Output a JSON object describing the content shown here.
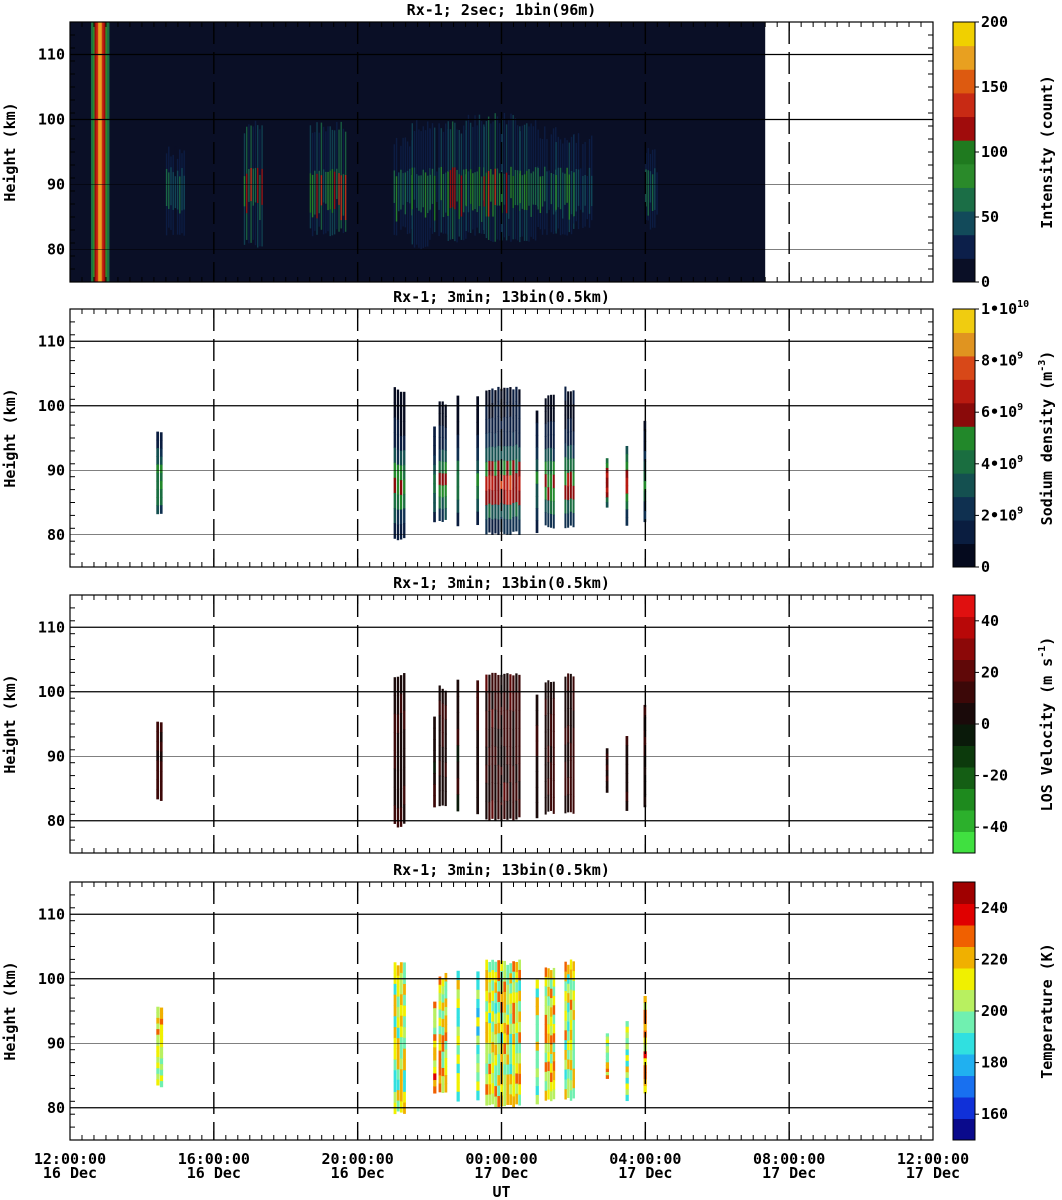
{
  "x_axis": {
    "label": "UT",
    "ticks": [
      {
        "time": "12:00:00",
        "date": "16 Dec"
      },
      {
        "time": "16:00:00",
        "date": "16 Dec"
      },
      {
        "time": "20:00:00",
        "date": "16 Dec"
      },
      {
        "time": "00:00:00",
        "date": "17 Dec"
      },
      {
        "time": "04:00:00",
        "date": "17 Dec"
      },
      {
        "time": "08:00:00",
        "date": "17 Dec"
      },
      {
        "time": "12:00:00",
        "date": "17 Dec"
      }
    ]
  },
  "chart_data": [
    {
      "type": "heatmap",
      "title": "Rx-1;  2sec; 1bin(96m)",
      "ylabel": "Height (km)",
      "ylim": [
        75,
        115
      ],
      "yticks": [
        "80",
        "90",
        "100",
        "110"
      ],
      "xlim": [
        "16 Dec 12:00:00",
        "17 Dec 12:00:00"
      ],
      "colorbar": {
        "label": "Intensity (count)",
        "range": [
          0,
          200
        ],
        "ticks": [
          "0",
          "50",
          "100",
          "150",
          "200"
        ],
        "colors": [
          "#0a0f26",
          "#0c1f4a",
          "#124a5a",
          "#1b6e46",
          "#2a8a2a",
          "#1f7a1f",
          "#a00c0c",
          "#c82a14",
          "#dd5a10",
          "#e8a020",
          "#f0d000"
        ]
      },
      "data_coverage": "16 Dec 12:00 to 17 Dec 07:20",
      "layers": [
        {
          "x_start": "16 Dec 12:00",
          "x_end": "17 Dec 07:20",
          "y_range": [
            75,
            115
          ],
          "value": 0
        },
        {
          "x_start": "16 Dec 12:35",
          "x_end": "16 Dec 13:05",
          "y_range": [
            75,
            115
          ],
          "value": 180
        }
      ],
      "bursts": [
        {
          "x_start": "16 Dec 14:40",
          "x_end": "16 Dec 15:10",
          "y_range": [
            82,
            96
          ],
          "value": 70
        },
        {
          "x_start": "16 Dec 16:50",
          "x_end": "16 Dec 17:20",
          "y_range": [
            80,
            100
          ],
          "value": 110
        },
        {
          "x_start": "16 Dec 18:40",
          "x_end": "16 Dec 19:40",
          "y_range": [
            82,
            100
          ],
          "value": 120
        },
        {
          "x_start": "16 Dec 21:00",
          "x_end": "16 Dec 21:30",
          "y_range": [
            82,
            98
          ],
          "value": 80
        },
        {
          "x_start": "16 Dec 21:30",
          "x_end": "16 Dec 22:00",
          "y_range": [
            80,
            100
          ],
          "value": 110
        },
        {
          "x_start": "16 Dec 22:00",
          "x_end": "16 Dec 22:30",
          "y_range": [
            82,
            100
          ],
          "value": 80
        },
        {
          "x_start": "16 Dec 22:30",
          "x_end": "16 Dec 23:00",
          "y_range": [
            81,
            100
          ],
          "value": 110
        },
        {
          "x_start": "16 Dec 23:00",
          "x_end": "16 Dec 23:30",
          "y_range": [
            82,
            101
          ],
          "value": 90
        },
        {
          "x_start": "16 Dec 23:30",
          "x_end": "17 Dec 00:00",
          "y_range": [
            81,
            101
          ],
          "value": 120
        },
        {
          "x_start": "17 Dec 00:00",
          "x_end": "17 Dec 00:30",
          "y_range": [
            81,
            101
          ],
          "value": 110
        },
        {
          "x_start": "17 Dec 00:30",
          "x_end": "17 Dec 01:00",
          "y_range": [
            81,
            100
          ],
          "value": 90
        },
        {
          "x_start": "17 Dec 01:00",
          "x_end": "17 Dec 01:30",
          "y_range": [
            82,
            99
          ],
          "value": 70
        },
        {
          "x_start": "17 Dec 01:30",
          "x_end": "17 Dec 02:00",
          "y_range": [
            82,
            98
          ],
          "value": 80
        },
        {
          "x_start": "17 Dec 02:00",
          "x_end": "17 Dec 02:30",
          "y_range": [
            83,
            98
          ],
          "value": 60
        },
        {
          "x_start": "17 Dec 04:00",
          "x_end": "17 Dec 04:20",
          "y_range": [
            83,
            96
          ],
          "value": 60
        }
      ]
    },
    {
      "type": "heatmap",
      "title": "Rx-1; 3min; 13bin(0.5km)",
      "ylabel": "Height (km)",
      "ylim": [
        75,
        115
      ],
      "yticks": [
        "80",
        "90",
        "100",
        "110"
      ],
      "xlim": [
        "16 Dec 12:00:00",
        "17 Dec 12:00:00"
      ],
      "colorbar": {
        "label": "Sodium density",
        "unit": "(m",
        "unit_exp": "-3",
        "unit_close": ")",
        "range": [
          0,
          10000000000.0
        ],
        "ticks": [
          {
            "mantissa": "0",
            "exp": ""
          },
          {
            "mantissa": "2•10",
            "exp": "9"
          },
          {
            "mantissa": "4•10",
            "exp": "9"
          },
          {
            "mantissa": "6•10",
            "exp": "9"
          },
          {
            "mantissa": "8•10",
            "exp": "9"
          },
          {
            "mantissa": "1•10",
            "exp": "10"
          }
        ],
        "colors": [
          "#050a1e",
          "#0a1d40",
          "#0f3050",
          "#145050",
          "#1a6e40",
          "#22882a",
          "#8a0a0a",
          "#b81a10",
          "#d84818",
          "#e09420",
          "#f0cc10"
        ]
      },
      "profiles": [
        {
          "x_start": "16 Dec 14:24",
          "x_end": "16 Dec 14:36",
          "y_range": [
            83,
            96
          ],
          "value": 4500000000.0
        },
        {
          "x_start": "16 Dec 21:00",
          "x_end": "16 Dec 21:21",
          "y_range": [
            79,
            103
          ],
          "value": 5000000000.0
        },
        {
          "x_start": "16 Dec 22:06",
          "x_end": "16 Dec 22:12",
          "y_range": [
            82,
            97
          ],
          "value": 4000000000.0
        },
        {
          "x_start": "16 Dec 22:15",
          "x_end": "16 Dec 22:30",
          "y_range": [
            82,
            101
          ],
          "value": 5000000000.0
        },
        {
          "x_start": "16 Dec 22:45",
          "x_end": "16 Dec 22:51",
          "y_range": [
            81,
            102
          ],
          "value": 4000000000.0
        },
        {
          "x_start": "16 Dec 23:18",
          "x_end": "16 Dec 23:24",
          "y_range": [
            81,
            102
          ],
          "value": 4000000000.0
        },
        {
          "x_start": "16 Dec 23:33",
          "x_end": "17 Dec 00:33",
          "y_range": [
            80,
            103
          ],
          "value": 6000000000.0
        },
        {
          "x_start": "17 Dec 00:57",
          "x_end": "17 Dec 01:03",
          "y_range": [
            80,
            100
          ],
          "value": 4000000000.0
        },
        {
          "x_start": "17 Dec 01:12",
          "x_end": "17 Dec 01:30",
          "y_range": [
            81,
            102
          ],
          "value": 5000000000.0
        },
        {
          "x_start": "17 Dec 01:45",
          "x_end": "17 Dec 02:03",
          "y_range": [
            81,
            103
          ],
          "value": 5500000000.0
        },
        {
          "x_start": "17 Dec 02:54",
          "x_end": "17 Dec 03:00",
          "y_range": [
            84,
            92
          ],
          "value": 6000000000.0
        },
        {
          "x_start": "17 Dec 03:27",
          "x_end": "17 Dec 03:33",
          "y_range": [
            81,
            94
          ],
          "value": 6000000000.0
        },
        {
          "x_start": "17 Dec 03:57",
          "x_end": "17 Dec 04:03",
          "y_range": [
            82,
            98
          ],
          "value": 4000000000.0
        }
      ]
    },
    {
      "type": "heatmap",
      "title": "Rx-1; 3min; 13bin(0.5km)",
      "ylabel": "Height (km)",
      "ylim": [
        75,
        115
      ],
      "yticks": [
        "80",
        "90",
        "100",
        "110"
      ],
      "xlim": [
        "16 Dec 12:00:00",
        "17 Dec 12:00:00"
      ],
      "colorbar": {
        "label": "LOS Velocity",
        "unit": "(m s",
        "unit_exp": "-1",
        "unit_close": ")",
        "range": [
          -50,
          50
        ],
        "ticks": [
          "-40",
          "-20",
          "0",
          "20",
          "40"
        ],
        "colors": [
          "#40e040",
          "#2cb02c",
          "#1e8a1e",
          "#145e14",
          "#0c3a0c",
          "#0a1a0a",
          "#1a0a0a",
          "#3c0808",
          "#600808",
          "#8c0808",
          "#b80808",
          "#e01010"
        ]
      },
      "profiles": [
        {
          "x_start": "16 Dec 14:24",
          "x_end": "16 Dec 14:36",
          "y_range": [
            83,
            96
          ],
          "value": 8
        },
        {
          "x_start": "16 Dec 21:00",
          "x_end": "16 Dec 21:21",
          "y_range": [
            79,
            103
          ],
          "value": 6
        },
        {
          "x_start": "16 Dec 22:06",
          "x_end": "16 Dec 22:12",
          "y_range": [
            82,
            97
          ],
          "value": 5
        },
        {
          "x_start": "16 Dec 22:15",
          "x_end": "16 Dec 22:30",
          "y_range": [
            82,
            101
          ],
          "value": 7
        },
        {
          "x_start": "16 Dec 22:45",
          "x_end": "16 Dec 22:51",
          "y_range": [
            81,
            102
          ],
          "value": 4
        },
        {
          "x_start": "16 Dec 23:18",
          "x_end": "16 Dec 23:24",
          "y_range": [
            81,
            102
          ],
          "value": 6
        },
        {
          "x_start": "16 Dec 23:33",
          "x_end": "17 Dec 00:33",
          "y_range": [
            80,
            103
          ],
          "value": 9
        },
        {
          "x_start": "17 Dec 00:57",
          "x_end": "17 Dec 01:03",
          "y_range": [
            80,
            100
          ],
          "value": 4
        },
        {
          "x_start": "17 Dec 01:12",
          "x_end": "17 Dec 01:30",
          "y_range": [
            81,
            102
          ],
          "value": 7
        },
        {
          "x_start": "17 Dec 01:45",
          "x_end": "17 Dec 02:03",
          "y_range": [
            81,
            103
          ],
          "value": 6
        },
        {
          "x_start": "17 Dec 02:54",
          "x_end": "17 Dec 03:00",
          "y_range": [
            84,
            92
          ],
          "value": 5
        },
        {
          "x_start": "17 Dec 03:27",
          "x_end": "17 Dec 03:33",
          "y_range": [
            81,
            94
          ],
          "value": 6
        },
        {
          "x_start": "17 Dec 03:57",
          "x_end": "17 Dec 04:03",
          "y_range": [
            82,
            98
          ],
          "value": 5
        }
      ]
    },
    {
      "type": "heatmap",
      "title": "Rx-1; 3min; 13bin(0.5km)",
      "ylabel": "Height (km)",
      "ylim": [
        75,
        115
      ],
      "yticks": [
        "80",
        "90",
        "100",
        "110"
      ],
      "xlim": [
        "16 Dec 12:00:00",
        "17 Dec 12:00:00"
      ],
      "colorbar": {
        "label": "Temperature (K)",
        "range": [
          150,
          250
        ],
        "ticks": [
          "160",
          "180",
          "200",
          "220",
          "240"
        ],
        "colors": [
          "#0a0a8c",
          "#1030d8",
          "#1870f0",
          "#20b0f0",
          "#30e0e0",
          "#70f0b0",
          "#b8f060",
          "#f0f000",
          "#f0b000",
          "#f06000",
          "#e00000",
          "#a00000"
        ]
      },
      "profiles": [
        {
          "x_start": "16 Dec 14:24",
          "x_end": "16 Dec 14:36",
          "y_range": [
            83,
            96
          ],
          "value": 208
        },
        {
          "x_start": "16 Dec 21:00",
          "x_end": "16 Dec 21:21",
          "y_range": [
            79,
            103
          ],
          "value": 205
        },
        {
          "x_start": "16 Dec 22:06",
          "x_end": "16 Dec 22:12",
          "y_range": [
            82,
            97
          ],
          "value": 215
        },
        {
          "x_start": "16 Dec 22:15",
          "x_end": "16 Dec 22:30",
          "y_range": [
            82,
            101
          ],
          "value": 212
        },
        {
          "x_start": "16 Dec 22:45",
          "x_end": "16 Dec 22:51",
          "y_range": [
            81,
            102
          ],
          "value": 200
        },
        {
          "x_start": "16 Dec 23:18",
          "x_end": "16 Dec 23:24",
          "y_range": [
            81,
            102
          ],
          "value": 195
        },
        {
          "x_start": "16 Dec 23:33",
          "x_end": "17 Dec 00:33",
          "y_range": [
            80,
            103
          ],
          "value": 210
        },
        {
          "x_start": "17 Dec 00:57",
          "x_end": "17 Dec 01:03",
          "y_range": [
            80,
            100
          ],
          "value": 205
        },
        {
          "x_start": "17 Dec 01:12",
          "x_end": "17 Dec 01:30",
          "y_range": [
            81,
            102
          ],
          "value": 214
        },
        {
          "x_start": "17 Dec 01:45",
          "x_end": "17 Dec 02:03",
          "y_range": [
            81,
            103
          ],
          "value": 208
        },
        {
          "x_start": "17 Dec 02:54",
          "x_end": "17 Dec 03:00",
          "y_range": [
            84,
            92
          ],
          "value": 212
        },
        {
          "x_start": "17 Dec 03:27",
          "x_end": "17 Dec 03:33",
          "y_range": [
            81,
            94
          ],
          "value": 205
        },
        {
          "x_start": "17 Dec 03:57",
          "x_end": "17 Dec 04:03",
          "y_range": [
            82,
            98
          ],
          "value": 222
        }
      ]
    }
  ]
}
